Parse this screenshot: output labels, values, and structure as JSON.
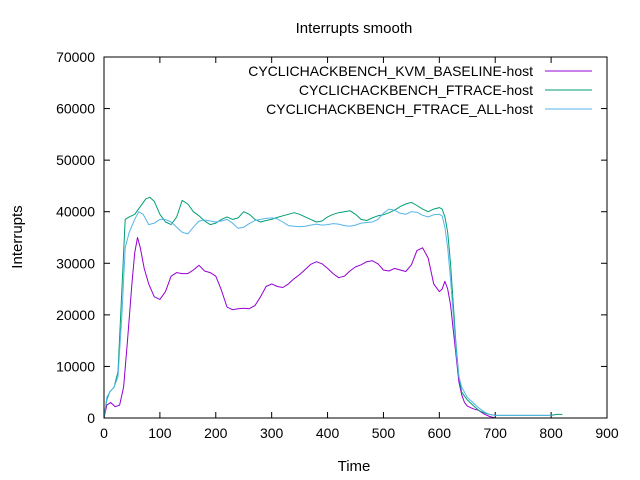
{
  "chart_data": {
    "type": "line",
    "title": "Interrupts smooth",
    "xlabel": "Time",
    "ylabel": "Interrupts",
    "xlim": [
      0,
      900
    ],
    "ylim": [
      0,
      70000
    ],
    "xticks": [
      0,
      100,
      200,
      300,
      400,
      500,
      600,
      700,
      800,
      900
    ],
    "yticks": [
      0,
      10000,
      20000,
      30000,
      40000,
      50000,
      60000,
      70000
    ],
    "grid": false,
    "legend_position": "top-right",
    "series": [
      {
        "name": "CYCLICHACKBENCH_KVM_BASELINE-host",
        "color": "#9400d3",
        "x": [
          0,
          5,
          12,
          20,
          28,
          35,
          42,
          50,
          55,
          60,
          65,
          72,
          80,
          90,
          100,
          110,
          120,
          130,
          140,
          150,
          160,
          170,
          180,
          190,
          200,
          210,
          220,
          230,
          240,
          250,
          260,
          270,
          280,
          290,
          300,
          310,
          320,
          330,
          340,
          350,
          360,
          370,
          380,
          390,
          400,
          410,
          420,
          430,
          440,
          450,
          460,
          470,
          480,
          490,
          500,
          510,
          520,
          530,
          540,
          550,
          560,
          570,
          580,
          590,
          600,
          605,
          610,
          615,
          620,
          625,
          630,
          635,
          640,
          645,
          650,
          660,
          670,
          680,
          690,
          700
        ],
        "y": [
          0,
          2500,
          3000,
          2200,
          2500,
          6000,
          15000,
          26000,
          32000,
          35000,
          33000,
          29000,
          26000,
          23500,
          23000,
          24500,
          27500,
          28200,
          28000,
          28000,
          28700,
          29600,
          28500,
          28200,
          27500,
          24800,
          21500,
          21000,
          21200,
          21300,
          21200,
          21800,
          23500,
          25500,
          26000,
          25500,
          25300,
          26000,
          27000,
          27800,
          28800,
          29800,
          30300,
          29900,
          29000,
          28000,
          27200,
          27500,
          28500,
          29300,
          29700,
          30300,
          30500,
          29900,
          28700,
          28500,
          29000,
          28700,
          28400,
          29700,
          32500,
          33000,
          31000,
          26000,
          24500,
          25000,
          26500,
          25000,
          22000,
          17000,
          12000,
          7000,
          4500,
          3000,
          2300,
          1800,
          1500,
          800,
          300,
          0
        ]
      },
      {
        "name": "CYCLICHACKBENCH_FTRACE-host",
        "color": "#009e73",
        "x": [
          0,
          5,
          10,
          18,
          25,
          32,
          38,
          45,
          55,
          65,
          75,
          82,
          90,
          100,
          110,
          120,
          130,
          140,
          150,
          160,
          170,
          180,
          190,
          200,
          210,
          220,
          230,
          240,
          250,
          260,
          270,
          280,
          290,
          300,
          310,
          320,
          330,
          340,
          350,
          360,
          370,
          380,
          390,
          400,
          410,
          420,
          430,
          440,
          450,
          460,
          470,
          480,
          490,
          500,
          510,
          520,
          530,
          540,
          550,
          560,
          570,
          580,
          590,
          600,
          605,
          610,
          615,
          620,
          625,
          630,
          635,
          640,
          650,
          660,
          670,
          680,
          690,
          700,
          710,
          720,
          740,
          760,
          780,
          800,
          810,
          820
        ],
        "y": [
          0,
          3500,
          5000,
          6000,
          9000,
          25000,
          38500,
          39000,
          39500,
          41000,
          42500,
          42800,
          42000,
          39500,
          38000,
          37500,
          39000,
          42200,
          41500,
          40000,
          39200,
          38200,
          37500,
          37800,
          38500,
          39000,
          38500,
          38800,
          40000,
          39500,
          38500,
          38000,
          38300,
          38500,
          38900,
          39200,
          39500,
          39800,
          39500,
          39000,
          38500,
          38000,
          38200,
          39000,
          39500,
          39800,
          40000,
          40200,
          39500,
          38500,
          38300,
          38800,
          39200,
          39400,
          39800,
          40300,
          41000,
          41500,
          41800,
          41200,
          40500,
          40000,
          40500,
          40800,
          40500,
          39000,
          36000,
          30000,
          22000,
          14000,
          8000,
          5000,
          3500,
          2500,
          1500,
          1000,
          700,
          500,
          500,
          500,
          500,
          500,
          500,
          500,
          700,
          700
        ]
      },
      {
        "name": "CYCLICHACKBENCH_FTRACE_ALL-host",
        "color": "#56b4e9",
        "x": [
          0,
          5,
          10,
          18,
          25,
          32,
          38,
          45,
          55,
          62,
          70,
          80,
          90,
          100,
          110,
          120,
          130,
          140,
          150,
          160,
          170,
          180,
          190,
          200,
          210,
          220,
          230,
          240,
          250,
          260,
          270,
          280,
          290,
          300,
          310,
          320,
          330,
          340,
          350,
          360,
          370,
          380,
          390,
          400,
          410,
          420,
          430,
          440,
          450,
          460,
          470,
          480,
          490,
          500,
          510,
          520,
          530,
          540,
          550,
          560,
          570,
          580,
          590,
          600,
          605,
          610,
          615,
          620,
          625,
          630,
          635,
          640,
          650,
          660,
          670,
          680,
          690,
          700,
          710,
          720,
          740,
          760,
          780,
          800
        ],
        "y": [
          0,
          4000,
          5000,
          6000,
          8000,
          20000,
          33000,
          36000,
          38500,
          40000,
          39500,
          37500,
          37800,
          38500,
          38500,
          38000,
          37000,
          36000,
          35700,
          37000,
          38200,
          38400,
          38200,
          38000,
          38200,
          38500,
          37800,
          36800,
          37000,
          37700,
          38300,
          38500,
          38700,
          38800,
          38600,
          38000,
          37300,
          37200,
          37100,
          37200,
          37400,
          37600,
          37400,
          37500,
          37700,
          37600,
          37300,
          37200,
          37400,
          37800,
          37900,
          38000,
          38500,
          39700,
          40500,
          40300,
          39700,
          39500,
          40000,
          39900,
          39300,
          39000,
          39400,
          39500,
          39200,
          37000,
          33000,
          27000,
          20000,
          13000,
          8000,
          6000,
          4000,
          3000,
          2000,
          1200,
          700,
          500,
          500,
          500,
          500,
          500,
          500,
          500
        ]
      }
    ]
  }
}
